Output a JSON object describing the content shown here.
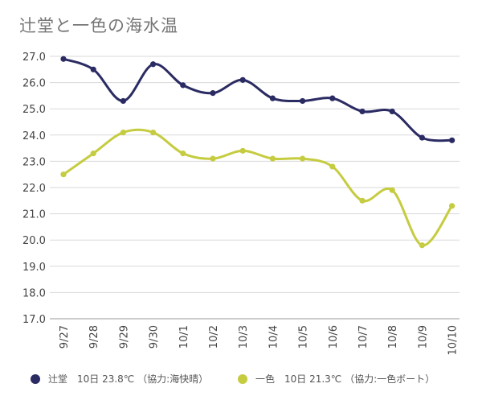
{
  "chart_data": {
    "type": "line",
    "title": "辻堂と一色の海水温",
    "categories": [
      "9/27",
      "9/28",
      "9/29",
      "9/30",
      "10/1",
      "10/2",
      "10/3",
      "10/4",
      "10/5",
      "10/6",
      "10/7",
      "10/8",
      "10/9",
      "10/10"
    ],
    "ylim": [
      17.0,
      27.0
    ],
    "yticks": [
      "27.0",
      "26.0",
      "25.0",
      "24.0",
      "23.0",
      "22.0",
      "21.0",
      "20.0",
      "19.0",
      "18.0",
      "17.0"
    ],
    "grid": true,
    "legend_position": "bottom",
    "series": [
      {
        "name": "辻堂",
        "legend_label": "辻堂　10日 23.8℃ （協力:海快晴）",
        "color": "#2b2b63",
        "values": [
          26.9,
          26.5,
          25.3,
          26.7,
          25.9,
          25.6,
          26.1,
          25.4,
          25.3,
          25.4,
          24.9,
          24.9,
          23.9,
          23.8
        ]
      },
      {
        "name": "一色",
        "legend_label": "一色　10日 21.3℃ （協力:一色ボート）",
        "color": "#c5cc40",
        "values": [
          22.5,
          23.3,
          24.1,
          24.1,
          23.3,
          23.1,
          23.4,
          23.1,
          23.1,
          22.8,
          21.5,
          21.9,
          19.8,
          21.3
        ]
      }
    ]
  }
}
